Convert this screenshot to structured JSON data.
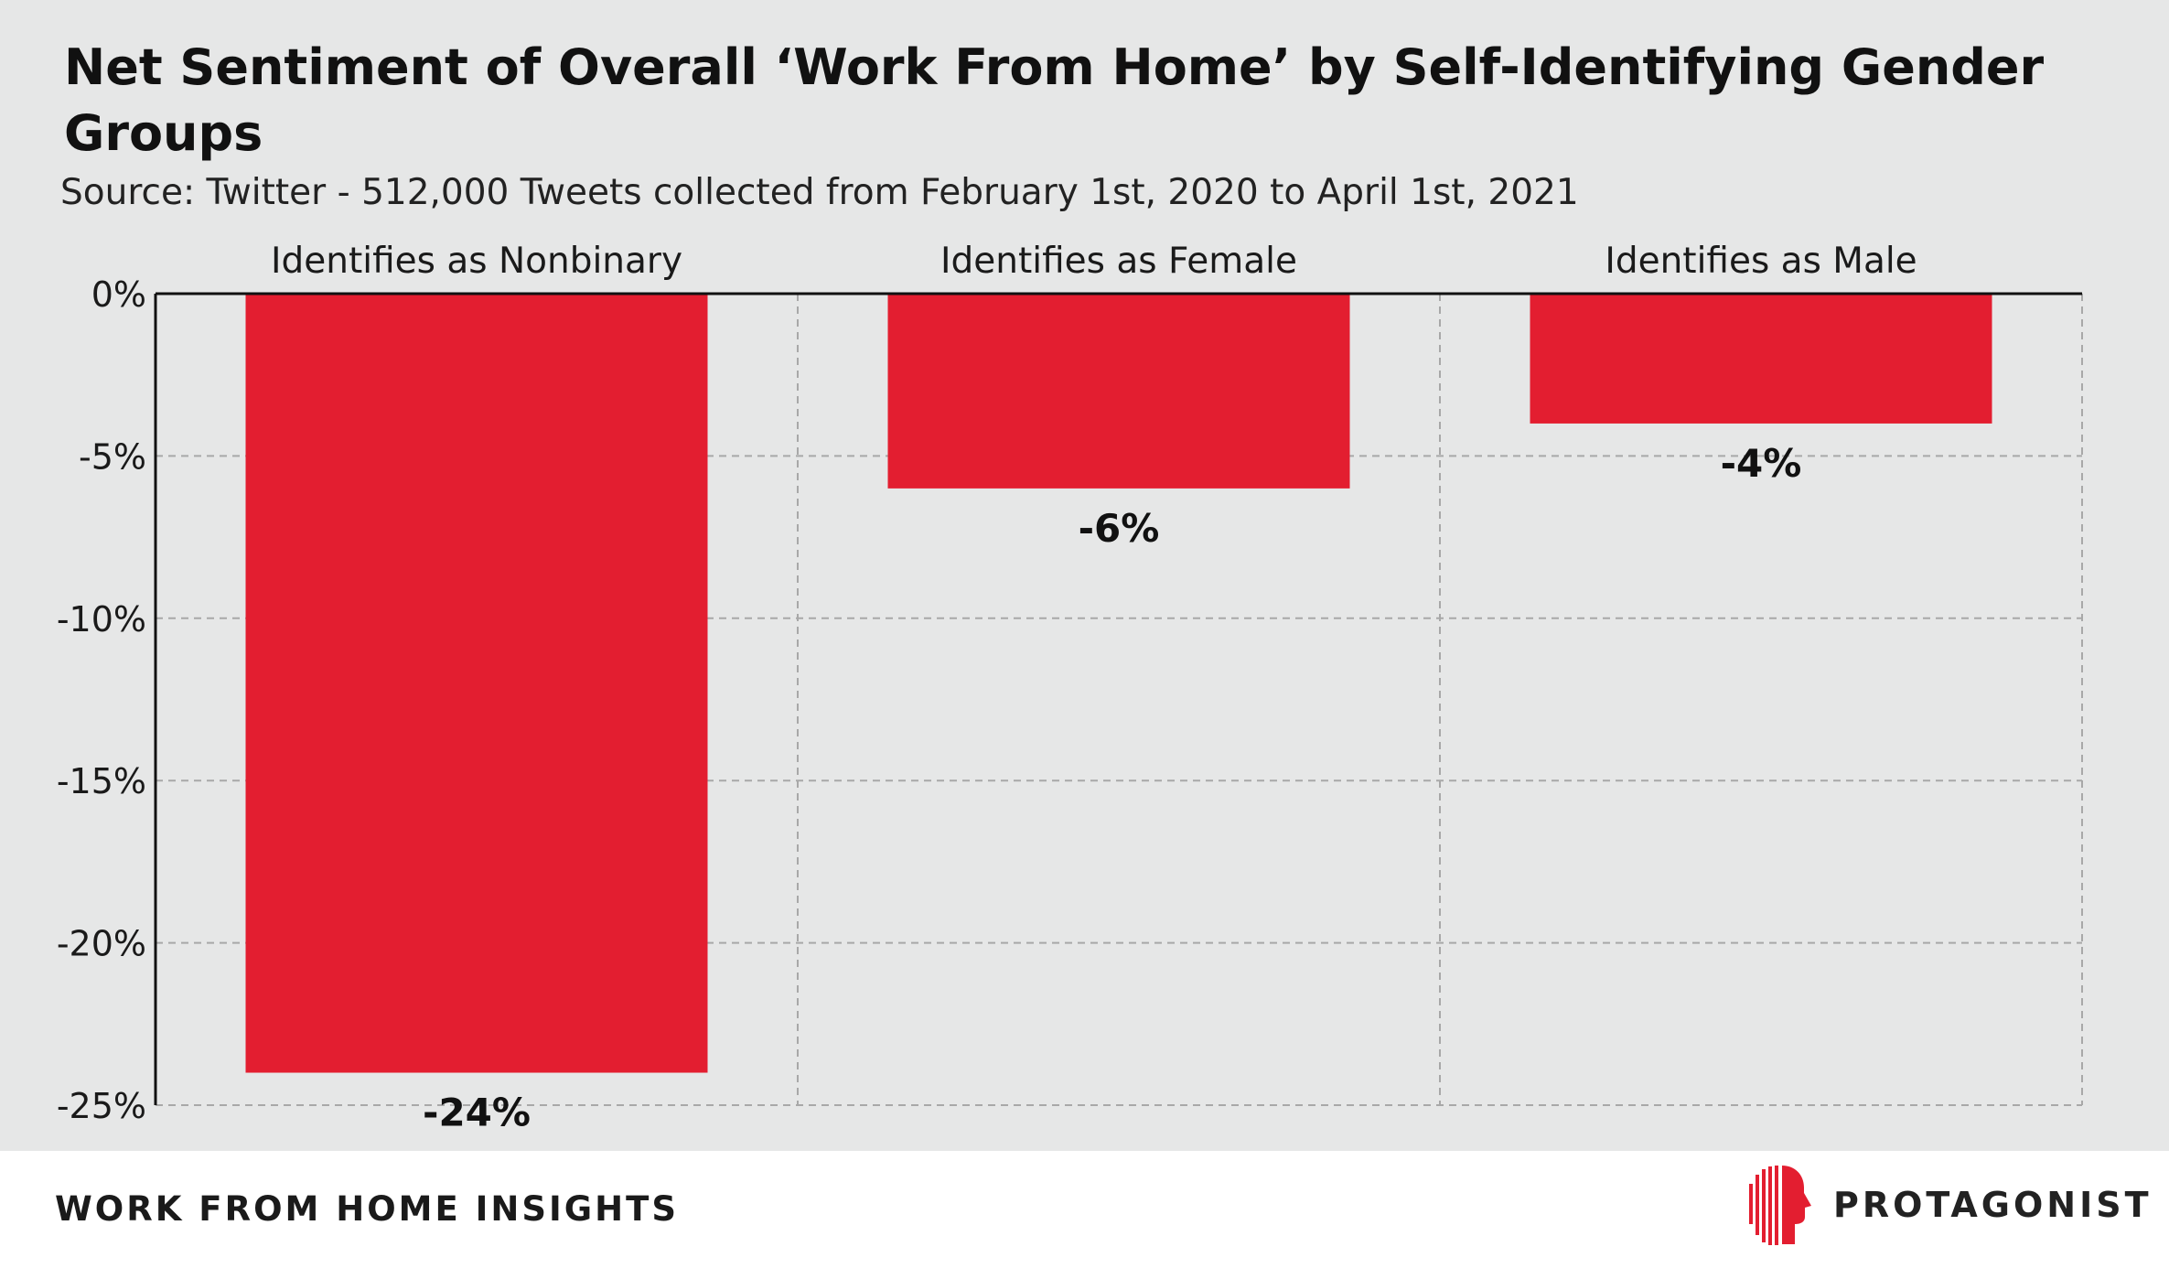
{
  "chart_data": {
    "type": "bar",
    "title": "Net Sentiment of Overall ‘Work From Home’ by Self-Identifying Gender Groups",
    "subtitle": "Source: Twitter - 512,000 Tweets collected from February 1st, 2020 to April 1st, 2021",
    "categories": [
      "Identifies as Nonbinary",
      "Identifies as Female",
      "Identifies as Male"
    ],
    "values": [
      -24,
      -6,
      -4
    ],
    "value_labels": [
      "-24%",
      "-6%",
      "-4%"
    ],
    "ylim": [
      -25,
      0
    ],
    "yticks": [
      0,
      -5,
      -10,
      -15,
      -20,
      -25
    ],
    "ytick_labels": [
      "0%",
      "-5%",
      "-10%",
      "-15%",
      "-20%",
      "-25%"
    ],
    "category_labels_position": "top",
    "grid": true,
    "bar_color": "#e31e30"
  },
  "footer": {
    "label": "WORK FROM HOME INSIGHTS",
    "brand_name": "PROTAGONIST",
    "brand_icon": "protagonist-logo-icon",
    "brand_color": "#e31e30"
  }
}
